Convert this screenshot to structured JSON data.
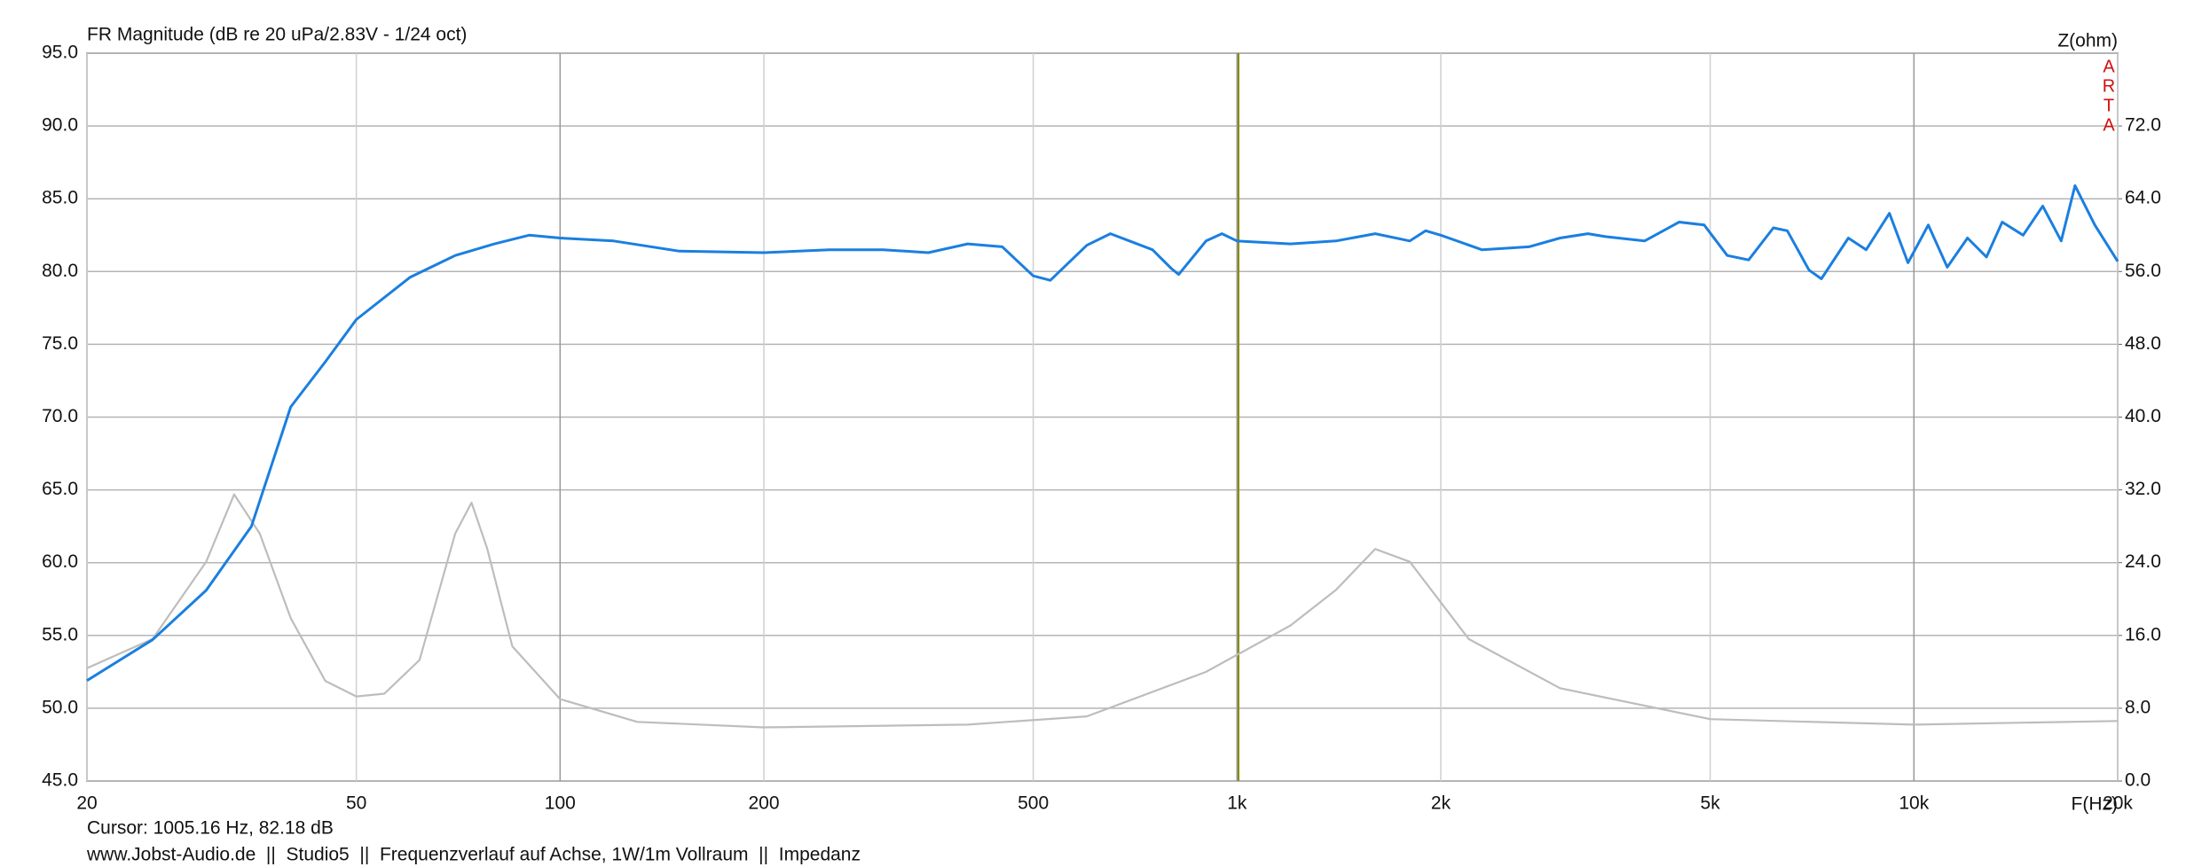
{
  "chart_data": {
    "type": "line",
    "title": "FR Magnitude (dB re 20 uPa/2.83V - 1/24 oct)",
    "y2label": "Z(ohm)",
    "xlabel": "F(Hz)",
    "watermark": [
      "A",
      "R",
      "T",
      "A"
    ],
    "cursor_label": "Cursor: 1005.16 Hz, 82.18 dB",
    "cursor_x": 1005.16,
    "footer": "www.Jobst-Audio.de  ||  Studio5  ||  Frequenzverlauf auf Achse, 1W/1m Vollraum  ||  Impedanz",
    "xscale": "log",
    "grid": true,
    "xlim": [
      20,
      20000
    ],
    "xticks": [
      20,
      50,
      100,
      200,
      500,
      {
        "value": 1000,
        "label": "1k"
      },
      {
        "value": 2000,
        "label": "2k"
      },
      {
        "value": 5000,
        "label": "5k"
      },
      {
        "value": 10000,
        "label": "10k"
      },
      {
        "value": 20000,
        "label": "20k"
      }
    ],
    "ylim": [
      45,
      95
    ],
    "yticks": [
      {
        "value": 45,
        "label": "45.0"
      },
      {
        "value": 50,
        "label": "50.0"
      },
      {
        "value": 55,
        "label": "55.0"
      },
      {
        "value": 60,
        "label": "60.0"
      },
      {
        "value": 65,
        "label": "65.0"
      },
      {
        "value": 70,
        "label": "70.0"
      },
      {
        "value": 75,
        "label": "75.0"
      },
      {
        "value": 80,
        "label": "80.0"
      },
      {
        "value": 85,
        "label": "85.0"
      },
      {
        "value": 90,
        "label": "90.0"
      },
      {
        "value": 95,
        "label": "95.0"
      }
    ],
    "y2lim": [
      0,
      80
    ],
    "y2ticks": [
      {
        "value": 0,
        "label": "0.0"
      },
      {
        "value": 8,
        "label": "8.0"
      },
      {
        "value": 16,
        "label": "16.0"
      },
      {
        "value": 24,
        "label": "24.0"
      },
      {
        "value": 32,
        "label": "32.0"
      },
      {
        "value": 40,
        "label": "40.0"
      },
      {
        "value": 48,
        "label": "48.0"
      },
      {
        "value": 56,
        "label": "56.0"
      },
      {
        "value": 64,
        "label": "64.0"
      },
      {
        "value": 72,
        "label": "72.0"
      }
    ],
    "series": [
      {
        "color": "#1a7fe0",
        "x": [
          20,
          25,
          30,
          35,
          40,
          45,
          50,
          60,
          70,
          80,
          90,
          100,
          120,
          150,
          200,
          250,
          300,
          350,
          400,
          450,
          500,
          530,
          600,
          650,
          750,
          800,
          820,
          900,
          950,
          1000,
          1200,
          1400,
          1600,
          1800,
          1900,
          2000,
          2300,
          2700,
          3000,
          3300,
          3500,
          4000,
          4500,
          4900,
          5300,
          5700,
          6200,
          6500,
          7000,
          7300,
          8000,
          8500,
          9200,
          9800,
          10500,
          11200,
          12000,
          12800,
          13500,
          14500,
          15500,
          16500,
          17300,
          18500,
          20000
        ],
        "values": [
          51.9,
          54.7,
          58.1,
          62.5,
          70.7,
          73.8,
          76.7,
          79.6,
          81.1,
          81.9,
          82.5,
          82.3,
          82.1,
          81.4,
          81.3,
          81.5,
          81.5,
          81.3,
          81.9,
          81.7,
          79.7,
          79.4,
          81.8,
          82.6,
          81.5,
          80.2,
          79.8,
          82.1,
          82.6,
          82.1,
          81.9,
          82.1,
          82.6,
          82.1,
          82.8,
          82.5,
          81.5,
          81.7,
          82.3,
          82.6,
          82.4,
          82.1,
          83.4,
          83.2,
          81.1,
          80.8,
          83.0,
          82.8,
          80.1,
          79.5,
          82.3,
          81.5,
          84.0,
          80.6,
          83.2,
          80.3,
          82.3,
          81.0,
          83.4,
          82.5,
          84.5,
          82.1,
          85.9,
          83.2,
          80.7
        ]
      },
      {
        "color": "#bdbdbd",
        "axis": "y2",
        "x": [
          20,
          25,
          30,
          33,
          36,
          40,
          45,
          50,
          55,
          62,
          70,
          74,
          78,
          85,
          100,
          130,
          200,
          400,
          600,
          900,
          1200,
          1400,
          1600,
          1800,
          2200,
          3000,
          5000,
          10000,
          20000
        ],
        "values": [
          12.4,
          15.6,
          24.1,
          31.5,
          27.2,
          17.9,
          11.0,
          9.3,
          9.6,
          13.3,
          27.2,
          30.6,
          25.6,
          14.8,
          9.0,
          6.5,
          5.9,
          6.2,
          7.1,
          12.0,
          17.1,
          21.0,
          25.5,
          24.1,
          15.6,
          10.2,
          6.8,
          6.2,
          6.6
        ]
      }
    ]
  }
}
